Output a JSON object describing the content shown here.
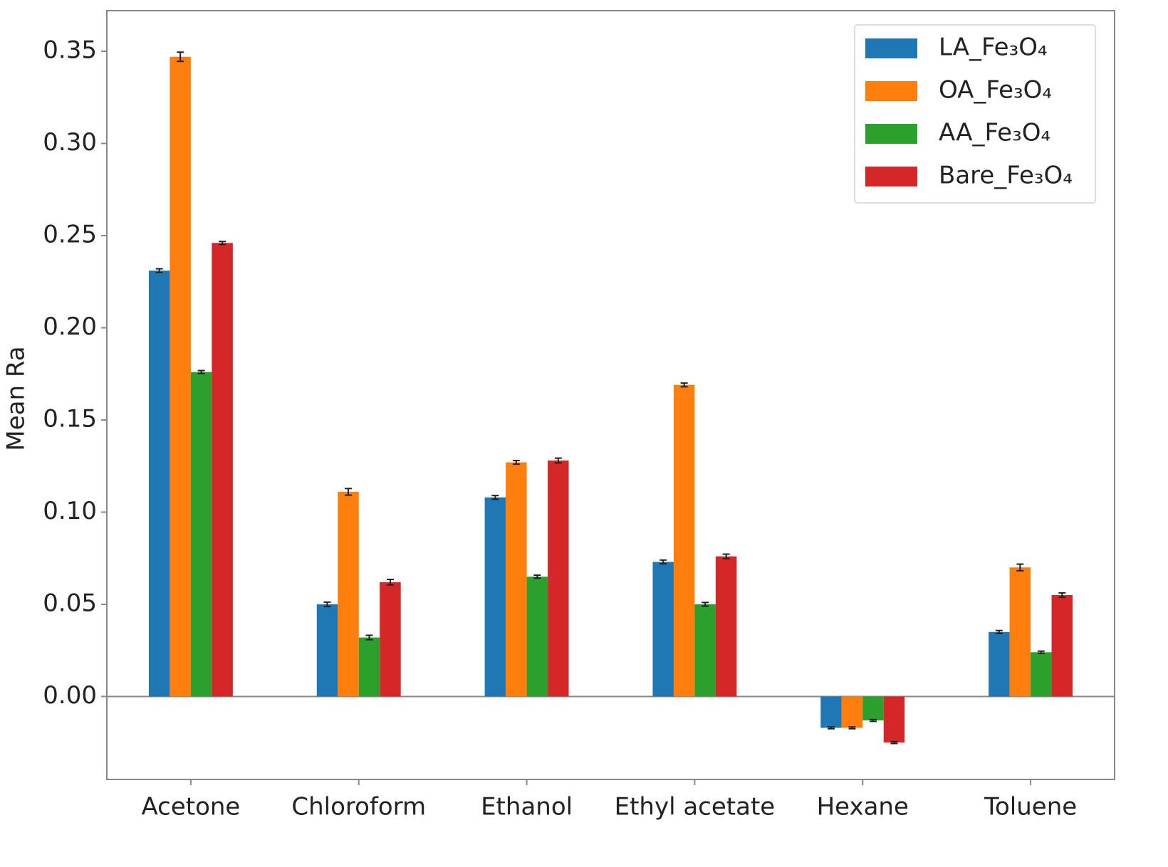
{
  "chart_data": {
    "type": "bar",
    "ylabel": "Mean Ra",
    "categories": [
      "Acetone",
      "Chloroform",
      "Ethanol",
      "Ethyl acetate",
      "Hexane",
      "Toluene"
    ],
    "series": [
      {
        "name": "LA_Fe₃O₄",
        "color": "#1f77b4",
        "values": [
          0.231,
          0.05,
          0.108,
          0.073,
          -0.017,
          0.035
        ],
        "errors": [
          0.001,
          0.0012,
          0.001,
          0.001,
          0.0005,
          0.0008
        ]
      },
      {
        "name": "OA_Fe₃O₄",
        "color": "#ff7f0e",
        "values": [
          0.347,
          0.111,
          0.127,
          0.169,
          -0.017,
          0.07
        ],
        "errors": [
          0.0025,
          0.0018,
          0.001,
          0.001,
          0.0005,
          0.0018
        ]
      },
      {
        "name": "AA_Fe₃O₄",
        "color": "#2ca02c",
        "values": [
          0.176,
          0.032,
          0.065,
          0.05,
          -0.013,
          0.024
        ],
        "errors": [
          0.0008,
          0.0012,
          0.0008,
          0.001,
          0.0005,
          0.0006
        ]
      },
      {
        "name": "Bare_Fe₃O₄",
        "color": "#d62728",
        "values": [
          0.246,
          0.062,
          0.128,
          0.076,
          -0.025,
          0.055
        ],
        "errors": [
          0.0008,
          0.0015,
          0.0013,
          0.0012,
          0.0005,
          0.0012
        ]
      }
    ],
    "ylim": [
      -0.045,
      0.372
    ],
    "yticks": [
      {
        "value": 0,
        "label": "0.00"
      },
      0.05,
      {
        "value": 0.1,
        "label": "0.10"
      },
      0.15,
      {
        "value": 0.2,
        "label": "0.20"
      },
      0.25,
      {
        "value": 0.3,
        "label": "0.30"
      },
      0.35
    ],
    "legend": "upper right"
  }
}
